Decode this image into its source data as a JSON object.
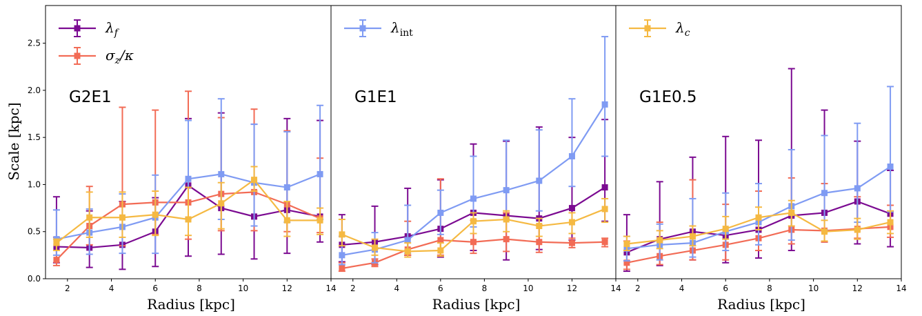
{
  "figure": {
    "ylabel": "Scale [kpc]",
    "xlabel": "Radius [kpc]"
  },
  "colors": {
    "lambda_f": "#7B0A91",
    "sigma_kappa": "#F26B55",
    "lambda_int": "#7F9BF3",
    "lambda_c": "#F5B942"
  },
  "chart_data": [
    {
      "type": "line",
      "panel_label": "G2E1",
      "xlabel": "Radius [kpc]",
      "ylabel": "Scale [kpc]",
      "xlim": [
        1,
        14
      ],
      "ylim": [
        0,
        2.9
      ],
      "x_ticks": [
        "2",
        "4",
        "6",
        "8",
        "10",
        "12",
        "14"
      ],
      "y_ticks": [
        "0.0",
        "0.5",
        "1.0",
        "1.5",
        "2.0",
        "2.5"
      ],
      "legend": {
        "position": "top-left",
        "entries": [
          "λ_f",
          "σ_z/κ"
        ]
      },
      "series": [
        {
          "name": "λ_f",
          "color": "#7B0A91",
          "x": [
            1.5,
            3,
            4.5,
            6,
            7.5,
            9,
            10.5,
            12,
            13.5
          ],
          "y": [
            0.34,
            0.33,
            0.36,
            0.5,
            0.99,
            0.75,
            0.66,
            0.73,
            0.66
          ],
          "err_lo": [
            0.17,
            0.12,
            0.1,
            0.13,
            0.24,
            0.26,
            0.21,
            0.27,
            0.39
          ],
          "err_hi": [
            0.87,
            0.72,
            0.82,
            0.86,
            1.7,
            1.76,
            1.64,
            1.7,
            1.68
          ]
        },
        {
          "name": "σ_z/κ",
          "color": "#F26B55",
          "x": [
            1.5,
            3,
            4.5,
            6,
            7.5,
            9,
            10.5,
            12,
            13.5
          ],
          "y": [
            0.2,
            0.56,
            0.79,
            0.81,
            0.81,
            0.9,
            0.92,
            0.79,
            0.64
          ],
          "err_lo": [
            0.14,
            0.36,
            0.35,
            0.47,
            0.42,
            0.51,
            0.51,
            0.5,
            0.49
          ],
          "err_hi": [
            0.44,
            0.98,
            1.82,
            1.79,
            1.99,
            1.71,
            1.8,
            1.57,
            1.28
          ]
        },
        {
          "name": "λ_int",
          "color": "#7F9BF3",
          "x": [
            1.5,
            3,
            4.5,
            6,
            7.5,
            9,
            10.5,
            12,
            13.5
          ],
          "y": [
            0.42,
            0.49,
            0.55,
            0.65,
            1.06,
            1.11,
            1.02,
            0.97,
            1.11
          ],
          "err_lo": [
            0.25,
            0.26,
            0.27,
            0.27,
            0.64,
            0.63,
            0.56,
            0.6,
            0.63
          ],
          "err_hi": [
            0.73,
            0.74,
            0.9,
            1.1,
            1.68,
            1.91,
            1.64,
            1.56,
            1.84
          ]
        },
        {
          "name": "λ_c",
          "color": "#F5B942",
          "x": [
            1.5,
            3,
            4.5,
            6,
            7.5,
            9,
            10.5,
            12,
            13.5
          ],
          "y": [
            0.38,
            0.65,
            0.65,
            0.68,
            0.63,
            0.8,
            1.05,
            0.62,
            0.62
          ],
          "err_lo": [
            0.3,
            0.44,
            0.44,
            0.46,
            0.46,
            0.53,
            0.93,
            0.45,
            0.47
          ],
          "err_hi": [
            0.42,
            0.92,
            0.92,
            0.93,
            0.97,
            1.02,
            1.19,
            0.82,
            0.75
          ]
        }
      ]
    },
    {
      "type": "line",
      "panel_label": "G1E1",
      "xlabel": "Radius [kpc]",
      "xlim": [
        1,
        14
      ],
      "ylim": [
        0,
        2.9
      ],
      "x_ticks": [
        "2",
        "4",
        "6",
        "8",
        "10",
        "12",
        "14"
      ],
      "legend": {
        "position": "top-left",
        "entries": [
          "λ_int"
        ]
      },
      "series": [
        {
          "name": "λ_f",
          "color": "#7B0A91",
          "x": [
            1.5,
            3,
            4.5,
            6,
            7.5,
            9,
            10.5,
            12,
            13.5
          ],
          "y": [
            0.36,
            0.39,
            0.45,
            0.53,
            0.7,
            0.67,
            0.64,
            0.75,
            0.97
          ],
          "err_lo": [
            0.18,
            0.15,
            0.25,
            0.23,
            0.3,
            0.2,
            0.31,
            0.41,
            0.61
          ],
          "err_hi": [
            0.68,
            0.77,
            0.96,
            1.05,
            1.43,
            1.46,
            1.61,
            1.5,
            1.69
          ]
        },
        {
          "name": "σ_z/κ",
          "color": "#F26B55",
          "x": [
            1.5,
            3,
            4.5,
            6,
            7.5,
            9,
            10.5,
            12,
            13.5
          ],
          "y": [
            0.11,
            0.17,
            0.31,
            0.41,
            0.39,
            0.42,
            0.39,
            0.38,
            0.39
          ],
          "err_lo": [
            0.08,
            0.13,
            0.25,
            0.25,
            0.27,
            0.29,
            0.28,
            0.33,
            0.34
          ],
          "err_hi": [
            0.17,
            0.21,
            0.61,
            1.06,
            0.62,
            0.7,
            0.57,
            0.43,
            0.43
          ]
        },
        {
          "name": "λ_int",
          "color": "#7F9BF3",
          "x": [
            1.5,
            3,
            4.5,
            6,
            7.5,
            9,
            10.5,
            12,
            13.5
          ],
          "y": [
            0.25,
            0.31,
            0.41,
            0.7,
            0.85,
            0.94,
            1.04,
            1.3,
            1.85
          ],
          "err_lo": [
            0.15,
            0.17,
            0.27,
            0.47,
            0.55,
            0.63,
            0.72,
            0.98,
            1.3
          ],
          "err_hi": [
            0.45,
            0.49,
            0.78,
            0.94,
            1.3,
            1.47,
            1.58,
            1.91,
            2.57
          ]
        },
        {
          "name": "λ_c",
          "color": "#F5B942",
          "x": [
            1.5,
            3,
            4.5,
            6,
            7.5,
            9,
            10.5,
            12,
            13.5
          ],
          "y": [
            0.47,
            0.33,
            0.29,
            0.3,
            0.61,
            0.63,
            0.56,
            0.6,
            0.74
          ],
          "err_lo": [
            0.35,
            0.25,
            0.23,
            0.24,
            0.48,
            0.5,
            0.45,
            0.48,
            0.6
          ],
          "err_hi": [
            0.63,
            0.42,
            0.38,
            0.38,
            0.7,
            0.72,
            0.64,
            0.7,
            0.85
          ]
        }
      ]
    },
    {
      "type": "line",
      "panel_label": "G1E0.5",
      "xlabel": "Radius [kpc]",
      "xlim": [
        1,
        14
      ],
      "ylim": [
        0,
        2.9
      ],
      "x_ticks": [
        "2",
        "4",
        "6",
        "8",
        "10",
        "12",
        "14"
      ],
      "legend": {
        "position": "top-left",
        "entries": [
          "λ_c"
        ]
      },
      "series": [
        {
          "name": "λ_f",
          "color": "#7B0A91",
          "x": [
            1.5,
            3,
            4.5,
            6,
            7.5,
            9,
            10.5,
            12,
            13.5
          ],
          "y": [
            0.28,
            0.42,
            0.5,
            0.46,
            0.52,
            0.67,
            0.7,
            0.82,
            0.69
          ],
          "err_lo": [
            0.08,
            0.14,
            0.2,
            0.17,
            0.22,
            0.3,
            0.39,
            0.37,
            0.34
          ],
          "err_hi": [
            0.68,
            1.03,
            1.29,
            1.51,
            1.47,
            2.23,
            1.79,
            1.46,
            1.15
          ]
        },
        {
          "name": "σ_z/κ",
          "color": "#F26B55",
          "x": [
            1.5,
            3,
            4.5,
            6,
            7.5,
            9,
            10.5,
            12,
            13.5
          ],
          "y": [
            0.17,
            0.24,
            0.3,
            0.36,
            0.43,
            0.52,
            0.51,
            0.53,
            0.55
          ],
          "err_lo": [
            0.1,
            0.15,
            0.2,
            0.2,
            0.3,
            0.37,
            0.39,
            0.43,
            0.44
          ],
          "err_hi": [
            0.4,
            0.6,
            1.05,
            0.79,
            0.93,
            1.07,
            1.01,
            0.87,
            0.78
          ]
        },
        {
          "name": "λ_int",
          "color": "#7F9BF3",
          "x": [
            1.5,
            3,
            4.5,
            6,
            7.5,
            9,
            10.5,
            12,
            13.5
          ],
          "y": [
            0.32,
            0.36,
            0.38,
            0.5,
            0.6,
            0.77,
            0.91,
            0.96,
            1.19
          ],
          "err_lo": [
            0.19,
            0.2,
            0.23,
            0.3,
            0.36,
            0.41,
            0.52,
            0.6,
            0.71
          ],
          "err_hi": [
            0.45,
            0.58,
            0.85,
            0.91,
            1.01,
            1.37,
            1.52,
            1.65,
            2.04
          ]
        },
        {
          "name": "λ_c",
          "color": "#F5B942",
          "x": [
            1.5,
            3,
            4.5,
            6,
            7.5,
            9,
            10.5,
            12,
            13.5
          ],
          "y": [
            0.37,
            0.41,
            0.45,
            0.53,
            0.65,
            0.7,
            0.5,
            0.52,
            0.6
          ],
          "err_lo": [
            0.3,
            0.32,
            0.35,
            0.42,
            0.52,
            0.56,
            0.4,
            0.42,
            0.48
          ],
          "err_hi": [
            0.45,
            0.51,
            0.56,
            0.66,
            0.76,
            0.83,
            0.62,
            0.64,
            0.72
          ]
        }
      ]
    }
  ]
}
